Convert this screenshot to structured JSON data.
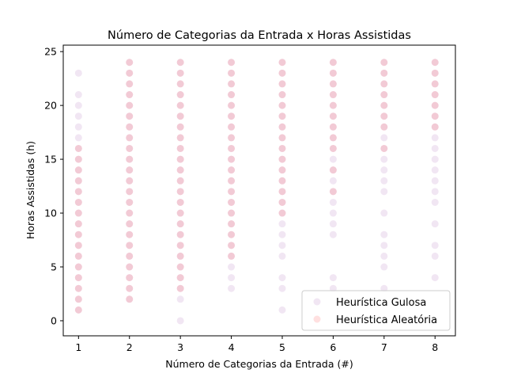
{
  "chart_data": {
    "type": "scatter",
    "title": "Número de Categorias da Entrada x Horas Assistidas",
    "xlabel": "Número de Categorias da Entrada (#)",
    "ylabel": "Horas Assistidas (h)",
    "xlim": [
      0.7,
      8.4
    ],
    "ylim": [
      -1.4,
      25.6
    ],
    "xticks": [
      1,
      2,
      3,
      4,
      5,
      6,
      7,
      8
    ],
    "yticks": [
      0,
      5,
      10,
      15,
      20,
      25
    ],
    "grid": false,
    "legend_position": "lower-right",
    "colors": {
      "gulosa": "#8b2f9f",
      "aleatoria": "#ff0000"
    },
    "series": [
      {
        "name": "Heurística Gulosa",
        "color": "#8b2f9f",
        "points": [
          [
            1,
            1
          ],
          [
            1,
            2
          ],
          [
            1,
            3
          ],
          [
            1,
            4
          ],
          [
            1,
            5
          ],
          [
            1,
            6
          ],
          [
            1,
            7
          ],
          [
            1,
            8
          ],
          [
            1,
            9
          ],
          [
            1,
            10
          ],
          [
            1,
            11
          ],
          [
            1,
            12
          ],
          [
            1,
            13
          ],
          [
            1,
            14
          ],
          [
            1,
            15
          ],
          [
            1,
            16
          ],
          [
            1,
            17
          ],
          [
            1,
            18
          ],
          [
            1,
            19
          ],
          [
            1,
            20
          ],
          [
            1,
            21
          ],
          [
            1,
            23
          ],
          [
            2,
            2
          ],
          [
            2,
            3
          ],
          [
            2,
            4
          ],
          [
            2,
            5
          ],
          [
            2,
            6
          ],
          [
            2,
            7
          ],
          [
            2,
            8
          ],
          [
            2,
            9
          ],
          [
            2,
            10
          ],
          [
            2,
            11
          ],
          [
            2,
            12
          ],
          [
            2,
            13
          ],
          [
            2,
            14
          ],
          [
            2,
            15
          ],
          [
            2,
            16
          ],
          [
            2,
            17
          ],
          [
            2,
            18
          ],
          [
            2,
            19
          ],
          [
            2,
            20
          ],
          [
            2,
            21
          ],
          [
            2,
            22
          ],
          [
            2,
            23
          ],
          [
            2,
            24
          ],
          [
            3,
            0
          ],
          [
            3,
            2
          ],
          [
            3,
            3
          ],
          [
            3,
            4
          ],
          [
            3,
            5
          ],
          [
            3,
            6
          ],
          [
            3,
            7
          ],
          [
            3,
            8
          ],
          [
            3,
            9
          ],
          [
            3,
            10
          ],
          [
            3,
            11
          ],
          [
            3,
            12
          ],
          [
            3,
            13
          ],
          [
            3,
            14
          ],
          [
            3,
            15
          ],
          [
            3,
            16
          ],
          [
            3,
            17
          ],
          [
            3,
            18
          ],
          [
            3,
            19
          ],
          [
            3,
            20
          ],
          [
            3,
            21
          ],
          [
            3,
            22
          ],
          [
            3,
            23
          ],
          [
            3,
            24
          ],
          [
            4,
            3
          ],
          [
            4,
            4
          ],
          [
            4,
            5
          ],
          [
            4,
            6
          ],
          [
            4,
            7
          ],
          [
            4,
            8
          ],
          [
            4,
            9
          ],
          [
            4,
            10
          ],
          [
            4,
            11
          ],
          [
            4,
            12
          ],
          [
            4,
            13
          ],
          [
            4,
            14
          ],
          [
            4,
            15
          ],
          [
            4,
            16
          ],
          [
            4,
            17
          ],
          [
            4,
            18
          ],
          [
            4,
            19
          ],
          [
            4,
            20
          ],
          [
            4,
            21
          ],
          [
            4,
            22
          ],
          [
            4,
            23
          ],
          [
            4,
            24
          ],
          [
            5,
            1
          ],
          [
            5,
            3
          ],
          [
            5,
            4
          ],
          [
            5,
            6
          ],
          [
            5,
            7
          ],
          [
            5,
            8
          ],
          [
            5,
            9
          ],
          [
            5,
            10
          ],
          [
            5,
            11
          ],
          [
            5,
            12
          ],
          [
            5,
            13
          ],
          [
            5,
            14
          ],
          [
            5,
            15
          ],
          [
            5,
            16
          ],
          [
            5,
            17
          ],
          [
            5,
            18
          ],
          [
            5,
            19
          ],
          [
            5,
            20
          ],
          [
            5,
            21
          ],
          [
            5,
            22
          ],
          [
            5,
            23
          ],
          [
            5,
            24
          ],
          [
            6,
            3
          ],
          [
            6,
            4
          ],
          [
            6,
            8
          ],
          [
            6,
            9
          ],
          [
            6,
            10
          ],
          [
            6,
            11
          ],
          [
            6,
            12
          ],
          [
            6,
            13
          ],
          [
            6,
            14
          ],
          [
            6,
            15
          ],
          [
            6,
            16
          ],
          [
            6,
            17
          ],
          [
            6,
            18
          ],
          [
            6,
            19
          ],
          [
            6,
            20
          ],
          [
            6,
            21
          ],
          [
            6,
            22
          ],
          [
            6,
            23
          ],
          [
            6,
            24
          ],
          [
            7,
            3
          ],
          [
            7,
            5
          ],
          [
            7,
            6
          ],
          [
            7,
            7
          ],
          [
            7,
            8
          ],
          [
            7,
            10
          ],
          [
            7,
            12
          ],
          [
            7,
            13
          ],
          [
            7,
            14
          ],
          [
            7,
            15
          ],
          [
            7,
            16
          ],
          [
            7,
            17
          ],
          [
            7,
            18
          ],
          [
            7,
            19
          ],
          [
            7,
            20
          ],
          [
            7,
            21
          ],
          [
            7,
            22
          ],
          [
            7,
            23
          ],
          [
            7,
            24
          ],
          [
            8,
            4
          ],
          [
            8,
            6
          ],
          [
            8,
            7
          ],
          [
            8,
            9
          ],
          [
            8,
            11
          ],
          [
            8,
            12
          ],
          [
            8,
            13
          ],
          [
            8,
            14
          ],
          [
            8,
            15
          ],
          [
            8,
            16
          ],
          [
            8,
            17
          ],
          [
            8,
            18
          ],
          [
            8,
            19
          ],
          [
            8,
            20
          ],
          [
            8,
            21
          ],
          [
            8,
            22
          ],
          [
            8,
            23
          ],
          [
            8,
            24
          ]
        ]
      },
      {
        "name": "Heurística Aleatória",
        "color": "#ff0000",
        "points": [
          [
            1,
            1
          ],
          [
            1,
            2
          ],
          [
            1,
            3
          ],
          [
            1,
            4
          ],
          [
            1,
            5
          ],
          [
            1,
            6
          ],
          [
            1,
            7
          ],
          [
            1,
            8
          ],
          [
            1,
            9
          ],
          [
            1,
            10
          ],
          [
            1,
            11
          ],
          [
            1,
            12
          ],
          [
            1,
            13
          ],
          [
            1,
            14
          ],
          [
            1,
            15
          ],
          [
            1,
            16
          ],
          [
            2,
            2
          ],
          [
            2,
            3
          ],
          [
            2,
            4
          ],
          [
            2,
            5
          ],
          [
            2,
            6
          ],
          [
            2,
            7
          ],
          [
            2,
            8
          ],
          [
            2,
            9
          ],
          [
            2,
            10
          ],
          [
            2,
            11
          ],
          [
            2,
            12
          ],
          [
            2,
            13
          ],
          [
            2,
            14
          ],
          [
            2,
            15
          ],
          [
            2,
            16
          ],
          [
            2,
            17
          ],
          [
            2,
            18
          ],
          [
            2,
            19
          ],
          [
            2,
            20
          ],
          [
            2,
            21
          ],
          [
            2,
            22
          ],
          [
            2,
            23
          ],
          [
            2,
            24
          ],
          [
            3,
            3
          ],
          [
            3,
            4
          ],
          [
            3,
            5
          ],
          [
            3,
            6
          ],
          [
            3,
            7
          ],
          [
            3,
            8
          ],
          [
            3,
            9
          ],
          [
            3,
            10
          ],
          [
            3,
            11
          ],
          [
            3,
            12
          ],
          [
            3,
            13
          ],
          [
            3,
            14
          ],
          [
            3,
            15
          ],
          [
            3,
            16
          ],
          [
            3,
            17
          ],
          [
            3,
            18
          ],
          [
            3,
            19
          ],
          [
            3,
            20
          ],
          [
            3,
            21
          ],
          [
            3,
            22
          ],
          [
            3,
            23
          ],
          [
            3,
            24
          ],
          [
            4,
            6
          ],
          [
            4,
            7
          ],
          [
            4,
            8
          ],
          [
            4,
            9
          ],
          [
            4,
            10
          ],
          [
            4,
            11
          ],
          [
            4,
            12
          ],
          [
            4,
            13
          ],
          [
            4,
            14
          ],
          [
            4,
            15
          ],
          [
            4,
            16
          ],
          [
            4,
            17
          ],
          [
            4,
            18
          ],
          [
            4,
            19
          ],
          [
            4,
            20
          ],
          [
            4,
            21
          ],
          [
            4,
            22
          ],
          [
            4,
            23
          ],
          [
            4,
            24
          ],
          [
            5,
            10
          ],
          [
            5,
            11
          ],
          [
            5,
            12
          ],
          [
            5,
            13
          ],
          [
            5,
            14
          ],
          [
            5,
            15
          ],
          [
            5,
            16
          ],
          [
            5,
            17
          ],
          [
            5,
            18
          ],
          [
            5,
            19
          ],
          [
            5,
            20
          ],
          [
            5,
            21
          ],
          [
            5,
            22
          ],
          [
            5,
            23
          ],
          [
            5,
            24
          ],
          [
            6,
            12
          ],
          [
            6,
            14
          ],
          [
            6,
            16
          ],
          [
            6,
            17
          ],
          [
            6,
            18
          ],
          [
            6,
            19
          ],
          [
            6,
            20
          ],
          [
            6,
            21
          ],
          [
            6,
            22
          ],
          [
            6,
            23
          ],
          [
            6,
            24
          ],
          [
            7,
            16
          ],
          [
            7,
            18
          ],
          [
            7,
            19
          ],
          [
            7,
            20
          ],
          [
            7,
            21
          ],
          [
            7,
            22
          ],
          [
            7,
            23
          ],
          [
            7,
            24
          ],
          [
            8,
            18
          ],
          [
            8,
            19
          ],
          [
            8,
            20
          ],
          [
            8,
            21
          ],
          [
            8,
            22
          ],
          [
            8,
            23
          ],
          [
            8,
            24
          ]
        ]
      }
    ]
  }
}
